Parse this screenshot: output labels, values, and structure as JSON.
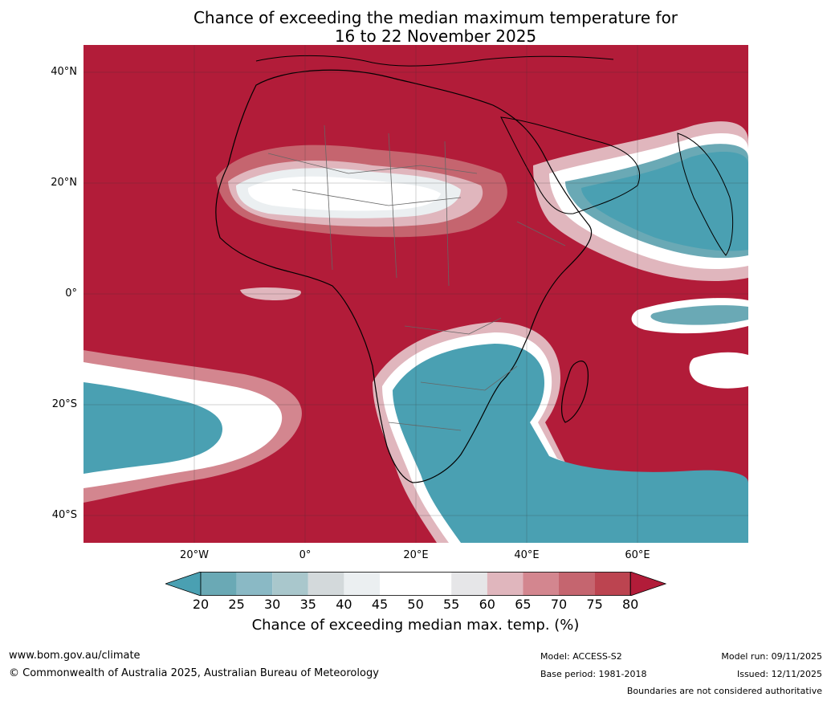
{
  "title_line1": "Chance of exceeding the median maximum temperature for",
  "title_line2": "16 to 22 November 2025",
  "lat_labels": [
    "40°N",
    "20°N",
    "0°",
    "20°S",
    "40°S"
  ],
  "lon_labels": [
    "20°W",
    "0°",
    "20°E",
    "40°E",
    "60°E"
  ],
  "colorbar": {
    "ticks": [
      "20",
      "25",
      "30",
      "35",
      "40",
      "45",
      "50",
      "55",
      "60",
      "65",
      "70",
      "75",
      "80"
    ],
    "colors": [
      "#4aa0b2",
      "#6aa9b5",
      "#8ab9c5",
      "#a9c7cc",
      "#d3d9db",
      "#ebeff1",
      "#ffffff",
      "#ffffff",
      "#e6e6e8",
      "#e0b6bd",
      "#d3868f",
      "#c5656f",
      "#bc4450",
      "#b21c39"
    ],
    "label": "Chance of exceeding median max. temp. (%)"
  },
  "footer": {
    "website": "www.bom.gov.au/climate",
    "copyright": "© Commonwealth of Australia 2025, Australian Bureau of Meteorology",
    "model": "Model: ACCESS-S2",
    "base_period": "Base period: 1981-2018",
    "model_run": "Model run: 09/11/2025",
    "issued": "Issued: 12/11/2025",
    "disclaimer": "Boundaries are not considered authoritative"
  }
}
